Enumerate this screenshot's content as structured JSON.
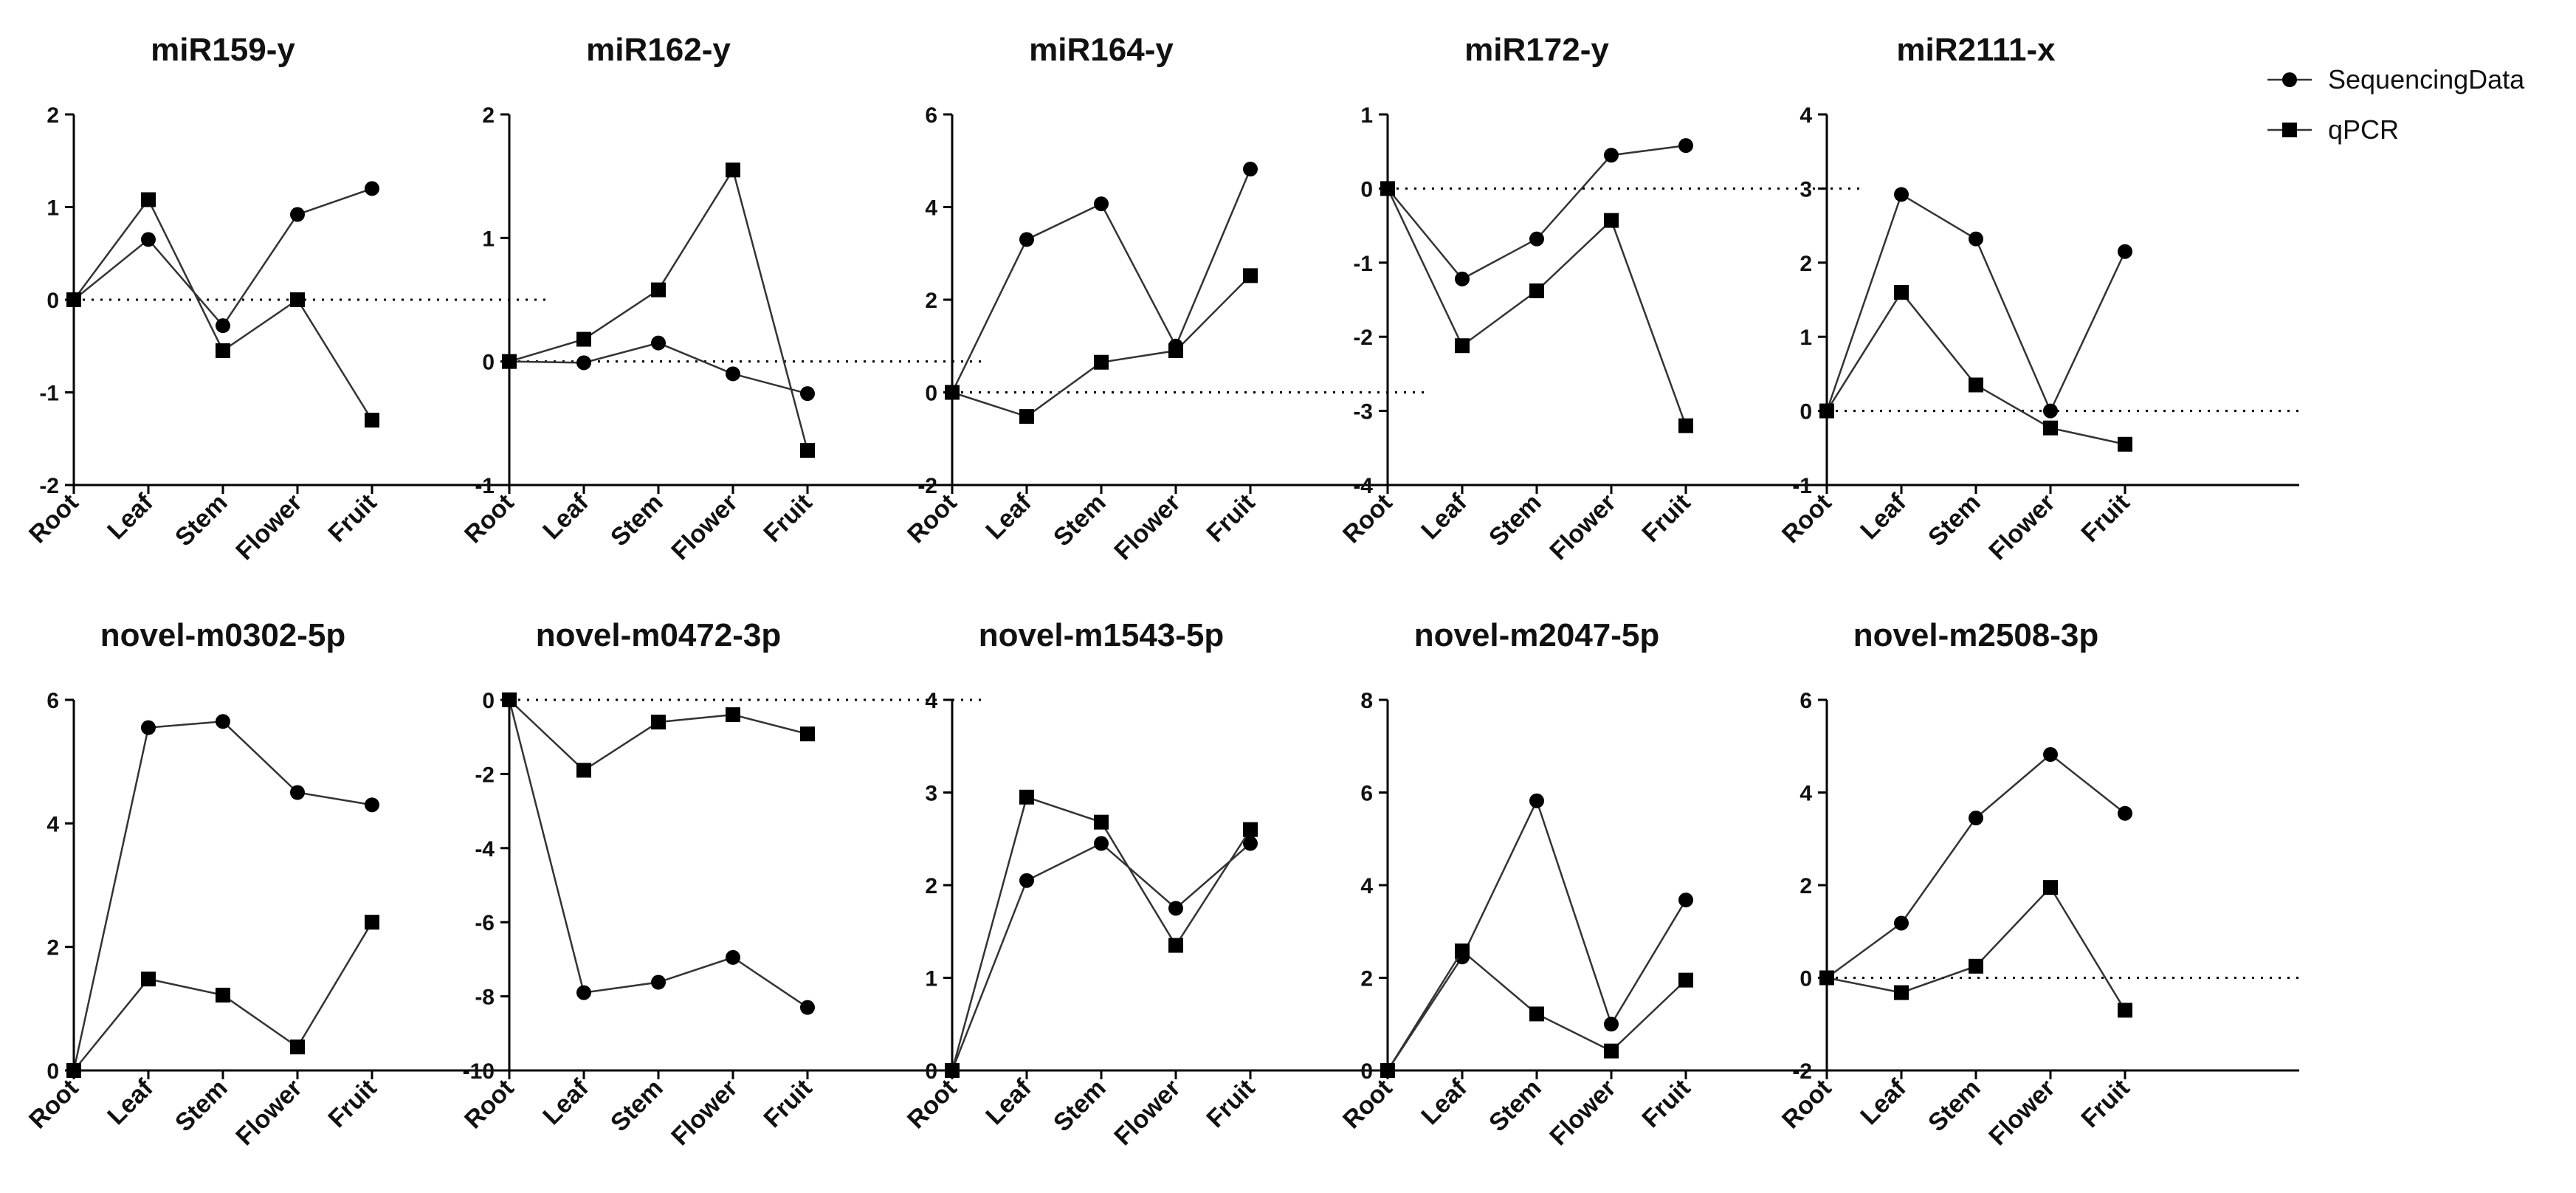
{
  "figure": {
    "series_names": [
      "SequencingData",
      "qPCR"
    ],
    "series_markers": [
      "circle",
      "square"
    ],
    "line_color": "#333333",
    "marker_color": "#000000"
  },
  "chart_data": [
    {
      "type": "line",
      "title": "miR159-y",
      "categories": [
        "Root",
        "Leaf",
        "Stem",
        "Flower",
        "Fruit"
      ],
      "yticks": [
        -2,
        -1,
        0,
        1,
        2
      ],
      "ylim": [
        -2,
        2
      ],
      "series": [
        {
          "name": "SequencingData",
          "values": [
            0,
            0.65,
            -0.28,
            0.92,
            1.2
          ]
        },
        {
          "name": "qPCR",
          "values": [
            0,
            1.08,
            -0.55,
            0,
            -1.3
          ]
        }
      ]
    },
    {
      "type": "line",
      "title": "miR162-y",
      "categories": [
        "Root",
        "Leaf",
        "Stem",
        "Flower",
        "Fruit"
      ],
      "yticks": [
        -1,
        0,
        1,
        2
      ],
      "ylim": [
        -1,
        2
      ],
      "series": [
        {
          "name": "SequencingData",
          "values": [
            0,
            -0.01,
            0.15,
            -0.1,
            -0.26
          ]
        },
        {
          "name": "qPCR",
          "values": [
            0,
            0.18,
            0.58,
            1.55,
            -0.72
          ]
        }
      ]
    },
    {
      "type": "line",
      "title": "miR164-y",
      "categories": [
        "Root",
        "Leaf",
        "Stem",
        "Flower",
        "Fruit"
      ],
      "yticks": [
        -2,
        0,
        2,
        4,
        6
      ],
      "ylim": [
        -2,
        6
      ],
      "series": [
        {
          "name": "SequencingData",
          "values": [
            0,
            3.3,
            4.07,
            1.0,
            4.82
          ]
        },
        {
          "name": "qPCR",
          "values": [
            0,
            -0.52,
            0.65,
            0.9,
            2.52
          ]
        }
      ]
    },
    {
      "type": "line",
      "title": "miR172-y",
      "categories": [
        "Root",
        "Leaf",
        "Stem",
        "Flower",
        "Fruit"
      ],
      "yticks": [
        -4,
        -3,
        -2,
        -1,
        0,
        1
      ],
      "ylim": [
        -4,
        1
      ],
      "series": [
        {
          "name": "SequencingData",
          "values": [
            0,
            -1.22,
            -0.68,
            0.45,
            0.58
          ]
        },
        {
          "name": "qPCR",
          "values": [
            0,
            -2.12,
            -1.38,
            -0.43,
            -3.2
          ]
        }
      ]
    },
    {
      "type": "line",
      "title": "miR2111-x",
      "categories": [
        "Root",
        "Leaf",
        "Stem",
        "Flower",
        "Fruit"
      ],
      "yticks": [
        -1,
        0,
        1,
        2,
        3,
        4
      ],
      "ylim": [
        -1,
        4
      ],
      "series": [
        {
          "name": "SequencingData",
          "values": [
            0,
            2.92,
            2.32,
            0,
            2.15
          ]
        },
        {
          "name": "qPCR",
          "values": [
            0,
            1.6,
            0.35,
            -0.23,
            -0.45
          ]
        }
      ]
    },
    {
      "type": "line",
      "title": "novel-m0302-5p",
      "categories": [
        "Root",
        "Leaf",
        "Stem",
        "Flower",
        "Fruit"
      ],
      "yticks": [
        0,
        2,
        4,
        6
      ],
      "ylim": [
        0,
        6
      ],
      "series": [
        {
          "name": "SequencingData",
          "values": [
            0,
            5.55,
            5.65,
            4.5,
            4.3
          ]
        },
        {
          "name": "qPCR",
          "values": [
            0,
            1.48,
            1.22,
            0.38,
            2.4
          ]
        }
      ]
    },
    {
      "type": "line",
      "title": "novel-m0472-3p",
      "categories": [
        "Root",
        "Leaf",
        "Stem",
        "Flower",
        "Fruit"
      ],
      "yticks": [
        -10,
        -8,
        -6,
        -4,
        -2,
        0
      ],
      "ylim": [
        -10,
        0
      ],
      "series": [
        {
          "name": "SequencingData",
          "values": [
            0,
            -7.9,
            -7.62,
            -6.95,
            -8.3
          ]
        },
        {
          "name": "qPCR",
          "values": [
            0,
            -1.9,
            -0.6,
            -0.4,
            -0.92
          ]
        }
      ]
    },
    {
      "type": "line",
      "title": "novel-m1543-5p",
      "categories": [
        "Root",
        "Leaf",
        "Stem",
        "Flower",
        "Fruit"
      ],
      "yticks": [
        0,
        1,
        2,
        3,
        4
      ],
      "ylim": [
        0,
        4
      ],
      "series": [
        {
          "name": "SequencingData",
          "values": [
            0,
            2.05,
            2.45,
            1.75,
            2.45
          ]
        },
        {
          "name": "qPCR",
          "values": [
            0,
            2.95,
            2.68,
            1.35,
            2.6
          ]
        }
      ]
    },
    {
      "type": "line",
      "title": "novel-m2047-5p",
      "categories": [
        "Root",
        "Leaf",
        "Stem",
        "Flower",
        "Fruit"
      ],
      "yticks": [
        0,
        2,
        4,
        6,
        8
      ],
      "ylim": [
        0,
        8
      ],
      "series": [
        {
          "name": "SequencingData",
          "values": [
            0,
            2.45,
            5.82,
            1.0,
            3.68
          ]
        },
        {
          "name": "qPCR",
          "values": [
            0,
            2.58,
            1.22,
            0.42,
            1.95
          ]
        }
      ]
    },
    {
      "type": "line",
      "title": "novel-m2508-3p",
      "categories": [
        "Root",
        "Leaf",
        "Stem",
        "Flower",
        "Fruit"
      ],
      "yticks": [
        -2,
        0,
        2,
        4,
        6
      ],
      "ylim": [
        -2,
        6
      ],
      "series": [
        {
          "name": "SequencingData",
          "values": [
            0,
            1.18,
            3.45,
            4.82,
            3.55
          ]
        },
        {
          "name": "qPCR",
          "values": [
            0,
            -0.32,
            0.25,
            1.95,
            -0.7
          ]
        }
      ]
    }
  ]
}
